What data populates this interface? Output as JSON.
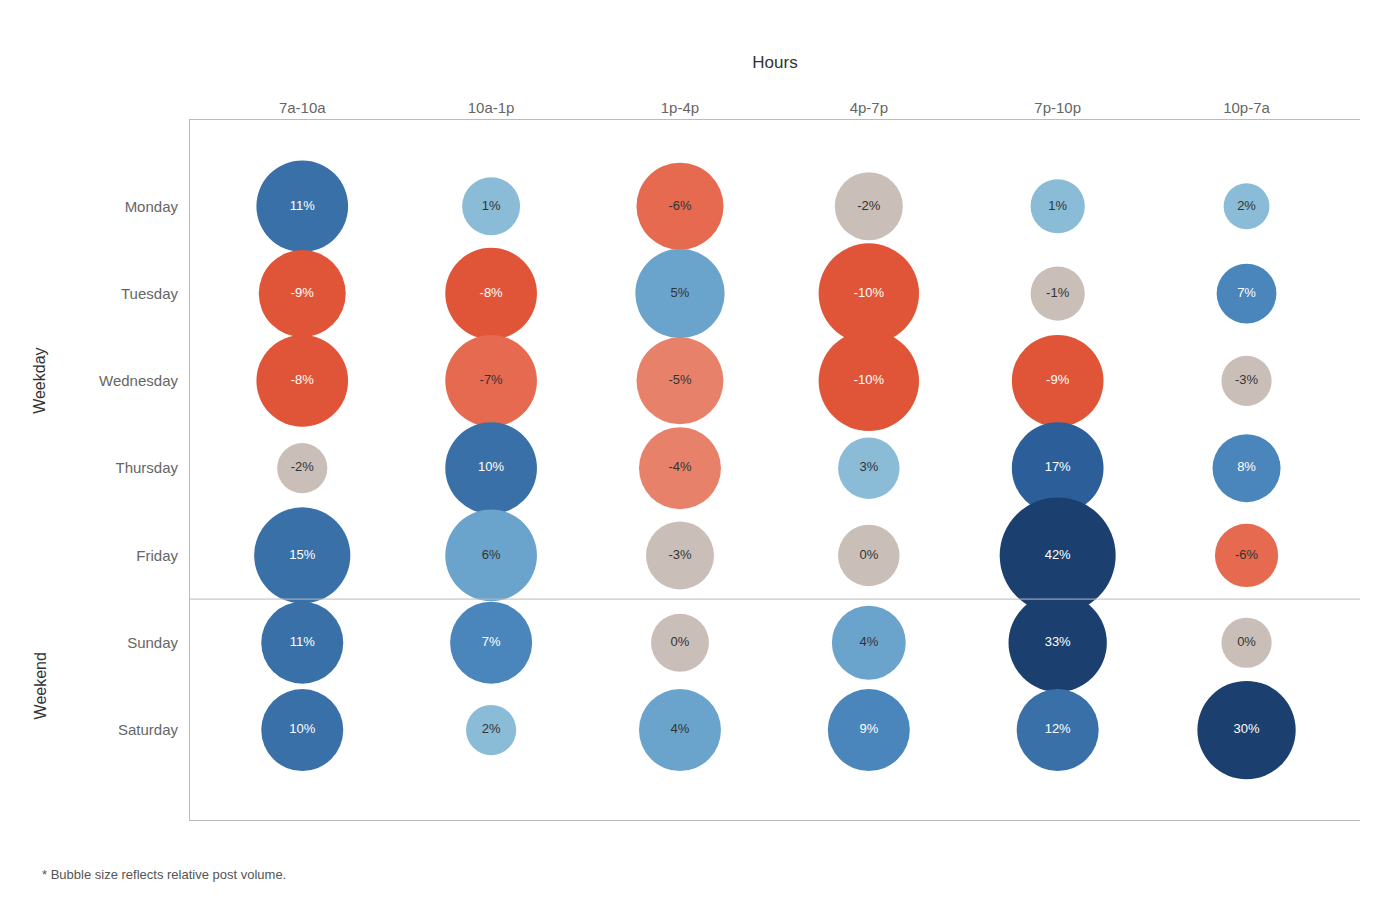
{
  "chart_data": {
    "type": "bubble",
    "x_label": "Hours",
    "x": [
      "7a-10a",
      "10a-1p",
      "1p-4p",
      "4p-7p",
      "7p-10p",
      "10p-7a"
    ],
    "y": [
      "Monday",
      "Tuesday",
      "Wednesday",
      "Thursday",
      "Friday",
      "Sunday",
      "Saturday"
    ],
    "y_groups": [
      {
        "label": "Weekday",
        "categories": [
          "Monday",
          "Tuesday",
          "Wednesday",
          "Thursday",
          "Friday"
        ]
      },
      {
        "label": "Weekend",
        "categories": [
          "Sunday",
          "Saturday"
        ]
      }
    ],
    "values": [
      [
        11,
        1,
        -6,
        -2,
        1,
        2
      ],
      [
        -9,
        -8,
        5,
        -10,
        -1,
        7
      ],
      [
        -8,
        -7,
        -5,
        -10,
        -9,
        -3
      ],
      [
        -2,
        10,
        -4,
        3,
        17,
        8
      ],
      [
        15,
        6,
        -3,
        0,
        42,
        -6
      ],
      [
        11,
        7,
        0,
        4,
        33,
        0
      ],
      [
        10,
        2,
        4,
        9,
        12,
        30
      ]
    ],
    "value_labels": [
      [
        "11%",
        "1%",
        "-6%",
        "-2%",
        "1%",
        "2%"
      ],
      [
        "-9%",
        "-8%",
        "5%",
        "-10%",
        "-1%",
        "7%"
      ],
      [
        "-8%",
        "-7%",
        "-5%",
        "-10%",
        "-9%",
        "-3%"
      ],
      [
        "-2%",
        "10%",
        "-4%",
        "3%",
        "17%",
        "8%"
      ],
      [
        "15%",
        "6%",
        "-3%",
        "0%",
        "42%",
        "-6%"
      ],
      [
        "11%",
        "7%",
        "0%",
        "4%",
        "33%",
        "0%"
      ],
      [
        "10%",
        "2%",
        "4%",
        "9%",
        "12%",
        "30%"
      ]
    ],
    "sizes": [
      [
        2000,
        800,
        1800,
        1100,
        700,
        500
      ],
      [
        1800,
        2000,
        1900,
        2400,
        700,
        850
      ],
      [
        2000,
        2000,
        1800,
        2400,
        2000,
        600
      ],
      [
        600,
        2000,
        1600,
        900,
        2000,
        1100
      ],
      [
        2200,
        2000,
        1100,
        900,
        3200,
        950
      ],
      [
        1600,
        1600,
        800,
        1300,
        2300,
        600
      ],
      [
        1600,
        600,
        1600,
        1600,
        1600,
        2300
      ]
    ],
    "colors": [
      [
        "#3a70a8",
        "#8abcd8",
        "#e56a50",
        "#c9bfb8",
        "#8abcd8",
        "#8abcd8"
      ],
      [
        "#e05538",
        "#e05538",
        "#6aa3cc",
        "#e05538",
        "#c9bfb8",
        "#4a85bc"
      ],
      [
        "#e05538",
        "#e56a50",
        "#e8816a",
        "#e05538",
        "#e05538",
        "#c9bfb8"
      ],
      [
        "#c9bfb8",
        "#3a70a8",
        "#e8816a",
        "#8abcd8",
        "#2c5f9a",
        "#4a85bc"
      ],
      [
        "#3a70a8",
        "#6aa3cc",
        "#c9bfb8",
        "#c9bfb8",
        "#1b3f6e",
        "#e56a50"
      ],
      [
        "#3a70a8",
        "#4a85bc",
        "#c9bfb8",
        "#6aa3cc",
        "#1b3f6e",
        "#c9bfb8"
      ],
      [
        "#3a70a8",
        "#8abcd8",
        "#6aa3cc",
        "#4a85bc",
        "#3a70a8",
        "#1b3f6e"
      ]
    ],
    "data_labels": true,
    "grid": false,
    "footnote": "* Bubble size reflects relative post volume."
  }
}
